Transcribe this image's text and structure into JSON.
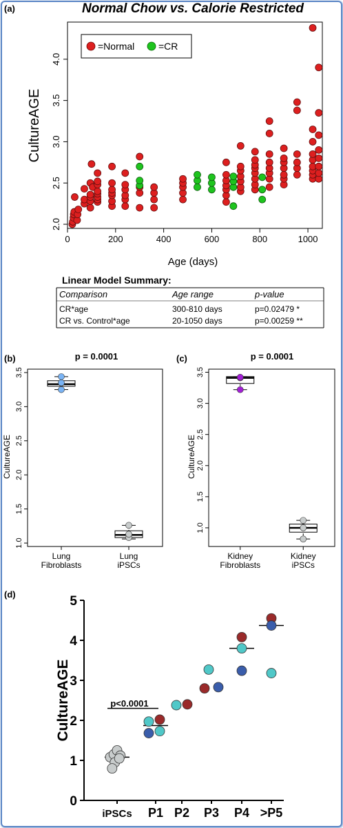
{
  "panel_labels": {
    "a": "(a)",
    "b": "(b)",
    "c": "(c)",
    "d": "(d)"
  },
  "colors": {
    "normal": "#dd1f1f",
    "cr": "#1ec41e",
    "lung": "#7ab4f5",
    "kidney": "#a31fd6",
    "ipsc_gray": "#c8cccc",
    "teal": "#50c8c8",
    "darkred": "#9a2a2a",
    "navy": "#3a5dab",
    "frame": "#5b86c5"
  },
  "table": {
    "title": "Linear Model Summary:",
    "headers": [
      "Comparison",
      "Age range",
      "p-value"
    ],
    "rows": [
      [
        "CR*age",
        "300-810 days",
        "p=0.02479 *"
      ],
      [
        "CR vs. Control*age",
        "20-1050 days",
        "p=0.00259 **"
      ]
    ]
  },
  "chart_data": [
    {
      "id": "a",
      "type": "scatter",
      "title": "Normal Chow vs. Calorie Restricted",
      "xlabel": "Age (days)",
      "ylabel": "CultureAGE",
      "xlim": [
        0,
        1060
      ],
      "ylim": [
        1.95,
        4.45
      ],
      "xticks": [
        0,
        200,
        400,
        600,
        800,
        1000
      ],
      "yticks": [
        "2.0",
        "2.5",
        "3.0",
        "3.5",
        "4.0"
      ],
      "legend": {
        "position": "top-left",
        "items": [
          "=Normal",
          "=CR"
        ]
      },
      "series": [
        {
          "name": "=Normal",
          "color": "#dd1f1f",
          "points": [
            [
              20,
              2.0
            ],
            [
              22,
              2.03
            ],
            [
              25,
              2.08
            ],
            [
              26,
              2.12
            ],
            [
              28,
              2.15
            ],
            [
              30,
              2.33
            ],
            [
              40,
              2.05
            ],
            [
              42,
              2.12
            ],
            [
              45,
              2.18
            ],
            [
              70,
              2.25
            ],
            [
              70,
              2.3
            ],
            [
              70,
              2.43
            ],
            [
              95,
              2.2
            ],
            [
              95,
              2.28
            ],
            [
              95,
              2.33
            ],
            [
              95,
              2.36
            ],
            [
              95,
              2.5
            ],
            [
              100,
              2.73
            ],
            [
              105,
              2.45
            ],
            [
              125,
              2.27
            ],
            [
              125,
              2.3
            ],
            [
              125,
              2.33
            ],
            [
              125,
              2.37
            ],
            [
              125,
              2.4
            ],
            [
              125,
              2.48
            ],
            [
              125,
              2.52
            ],
            [
              125,
              2.62
            ],
            [
              185,
              2.22
            ],
            [
              185,
              2.28
            ],
            [
              185,
              2.35
            ],
            [
              185,
              2.38
            ],
            [
              185,
              2.42
            ],
            [
              185,
              2.5
            ],
            [
              185,
              2.7
            ],
            [
              240,
              2.22
            ],
            [
              240,
              2.3
            ],
            [
              240,
              2.35
            ],
            [
              240,
              2.42
            ],
            [
              240,
              2.48
            ],
            [
              240,
              2.62
            ],
            [
              300,
              2.2
            ],
            [
              300,
              2.38
            ],
            [
              300,
              2.45
            ],
            [
              300,
              2.82
            ],
            [
              360,
              2.2
            ],
            [
              360,
              2.3
            ],
            [
              360,
              2.38
            ],
            [
              360,
              2.45
            ],
            [
              480,
              2.3
            ],
            [
              480,
              2.38
            ],
            [
              480,
              2.45
            ],
            [
              480,
              2.5
            ],
            [
              480,
              2.55
            ],
            [
              660,
              2.27
            ],
            [
              660,
              2.35
            ],
            [
              660,
              2.42
            ],
            [
              660,
              2.47
            ],
            [
              660,
              2.53
            ],
            [
              660,
              2.6
            ],
            [
              660,
              2.75
            ],
            [
              720,
              2.4
            ],
            [
              720,
              2.45
            ],
            [
              720,
              2.52
            ],
            [
              720,
              2.58
            ],
            [
              720,
              2.65
            ],
            [
              720,
              2.7
            ],
            [
              720,
              2.95
            ],
            [
              780,
              2.42
            ],
            [
              780,
              2.48
            ],
            [
              780,
              2.55
            ],
            [
              780,
              2.62
            ],
            [
              780,
              2.68
            ],
            [
              780,
              2.72
            ],
            [
              780,
              2.78
            ],
            [
              780,
              2.88
            ],
            [
              840,
              2.45
            ],
            [
              840,
              2.55
            ],
            [
              840,
              2.62
            ],
            [
              840,
              2.68
            ],
            [
              840,
              2.75
            ],
            [
              840,
              2.85
            ],
            [
              840,
              3.1
            ],
            [
              840,
              3.25
            ],
            [
              900,
              2.48
            ],
            [
              900,
              2.55
            ],
            [
              900,
              2.6
            ],
            [
              900,
              2.68
            ],
            [
              900,
              2.75
            ],
            [
              900,
              2.8
            ],
            [
              900,
              2.92
            ],
            [
              955,
              2.6
            ],
            [
              955,
              2.68
            ],
            [
              955,
              2.75
            ],
            [
              955,
              2.85
            ],
            [
              955,
              3.38
            ],
            [
              955,
              3.48
            ],
            [
              1020,
              2.55
            ],
            [
              1020,
              2.6
            ],
            [
              1020,
              2.65
            ],
            [
              1020,
              2.7
            ],
            [
              1020,
              2.78
            ],
            [
              1020,
              2.85
            ],
            [
              1020,
              3.15
            ],
            [
              1020,
              3.0
            ],
            [
              1020,
              4.38
            ],
            [
              1045,
              2.55
            ],
            [
              1045,
              2.62
            ],
            [
              1045,
              2.7
            ],
            [
              1045,
              2.8
            ],
            [
              1045,
              2.9
            ],
            [
              1045,
              3.08
            ],
            [
              1045,
              3.35
            ],
            [
              1045,
              3.9
            ]
          ]
        },
        {
          "name": "=CR",
          "color": "#1ec41e",
          "points": [
            [
              300,
              2.47
            ],
            [
              300,
              2.53
            ],
            [
              300,
              2.7
            ],
            [
              540,
              2.45
            ],
            [
              540,
              2.53
            ],
            [
              540,
              2.6
            ],
            [
              600,
              2.42
            ],
            [
              600,
              2.5
            ],
            [
              600,
              2.57
            ],
            [
              690,
              2.22
            ],
            [
              690,
              2.45
            ],
            [
              690,
              2.52
            ],
            [
              690,
              2.58
            ],
            [
              810,
              2.3
            ],
            [
              810,
              2.42
            ],
            [
              810,
              2.57
            ]
          ]
        }
      ]
    },
    {
      "id": "b",
      "type": "boxplot",
      "title": "p = 0.0001",
      "ylabel": "CultureAGE",
      "ylim": [
        0.95,
        3.55
      ],
      "yticks": [
        "1.0",
        "1.5",
        "2.0",
        "2.5",
        "3.0",
        "3.5"
      ],
      "groups": [
        {
          "label": [
            "Lung",
            "Fibroblasts"
          ],
          "q1": 3.3,
          "median": 3.33,
          "q3": 3.38,
          "whisker_low": 3.25,
          "whisker_high": 3.44,
          "points": [
            3.25,
            3.35,
            3.44
          ],
          "color": "#7ab4f5"
        },
        {
          "label": [
            "Lung",
            "iPSCs"
          ],
          "q1": 1.08,
          "median": 1.12,
          "q3": 1.18,
          "whisker_low": 1.06,
          "whisker_high": 1.26,
          "points": [
            1.08,
            1.13,
            1.26
          ],
          "color": "#c8cccc"
        }
      ]
    },
    {
      "id": "c",
      "type": "boxplot",
      "title": "p = 0.0001",
      "ylabel": "CultureAGE",
      "ylim": [
        0.7,
        3.55
      ],
      "yticks": [
        "1.0",
        "1.5",
        "2.0",
        "2.5",
        "3.0",
        "3.5"
      ],
      "groups": [
        {
          "label": [
            "Kidney",
            "Fibroblasts"
          ],
          "q1": 3.32,
          "median": 3.41,
          "q3": 3.43,
          "whisker_low": 3.22,
          "whisker_high": 3.43,
          "points": [
            3.22,
            3.41,
            3.42
          ],
          "color": "#a31fd6"
        },
        {
          "label": [
            "Kidney",
            "iPSCs"
          ],
          "q1": 0.93,
          "median": 1.0,
          "q3": 1.06,
          "whisker_low": 0.82,
          "whisker_high": 1.12,
          "points": [
            0.82,
            1.0,
            1.12
          ],
          "color": "#c8cccc"
        }
      ]
    },
    {
      "id": "d",
      "type": "dotplot",
      "ylabel": "CultureAGE",
      "ylim": [
        0,
        5
      ],
      "yticks": [
        "0",
        "1",
        "2",
        "3",
        "4",
        "5"
      ],
      "categories": [
        "iPSCs",
        "P1",
        "P2",
        "P3",
        "P4",
        ">P5"
      ],
      "annotation": {
        "text": "p<0.0001",
        "from": "iPSCs",
        "to": "P1"
      },
      "medians": [
        1.08,
        1.87,
        null,
        null,
        3.8,
        4.37
      ],
      "points": [
        {
          "cat": 0,
          "offset": -0.25,
          "y": 1.08,
          "color": "#c8cccc"
        },
        {
          "cat": 0,
          "offset": -0.12,
          "y": 1.15,
          "color": "#c8cccc"
        },
        {
          "cat": 0,
          "offset": 0.0,
          "y": 1.25,
          "color": "#c8cccc"
        },
        {
          "cat": 0,
          "offset": 0.12,
          "y": 1.12,
          "color": "#c8cccc"
        },
        {
          "cat": 0,
          "offset": -0.08,
          "y": 0.95,
          "color": "#c8cccc"
        },
        {
          "cat": 0,
          "offset": -0.18,
          "y": 0.8,
          "color": "#c8cccc"
        },
        {
          "cat": 0,
          "offset": 0.08,
          "y": 1.05,
          "color": "#c8cccc"
        },
        {
          "cat": 1,
          "offset": -0.25,
          "y": 1.97,
          "color": "#50c8c8"
        },
        {
          "cat": 1,
          "offset": 0.15,
          "y": 2.02,
          "color": "#9a2a2a"
        },
        {
          "cat": 1,
          "offset": -0.25,
          "y": 1.68,
          "color": "#3a5dab"
        },
        {
          "cat": 1,
          "offset": 0.15,
          "y": 1.73,
          "color": "#50c8c8"
        },
        {
          "cat": 2,
          "offset": -0.2,
          "y": 2.38,
          "color": "#50c8c8"
        },
        {
          "cat": 2,
          "offset": 0.2,
          "y": 2.4,
          "color": "#9a2a2a"
        },
        {
          "cat": 3,
          "offset": -0.1,
          "y": 3.27,
          "color": "#50c8c8"
        },
        {
          "cat": 3,
          "offset": -0.25,
          "y": 2.8,
          "color": "#9a2a2a"
        },
        {
          "cat": 3,
          "offset": 0.25,
          "y": 2.83,
          "color": "#3a5dab"
        },
        {
          "cat": 4,
          "offset": 0.0,
          "y": 4.08,
          "color": "#9a2a2a"
        },
        {
          "cat": 4,
          "offset": 0.0,
          "y": 3.8,
          "color": "#50c8c8"
        },
        {
          "cat": 4,
          "offset": 0.0,
          "y": 3.24,
          "color": "#3a5dab"
        },
        {
          "cat": 5,
          "offset": 0.0,
          "y": 4.55,
          "color": "#9a2a2a"
        },
        {
          "cat": 5,
          "offset": 0.0,
          "y": 4.37,
          "color": "#3a5dab"
        },
        {
          "cat": 5,
          "offset": 0.0,
          "y": 3.18,
          "color": "#50c8c8"
        }
      ]
    }
  ]
}
